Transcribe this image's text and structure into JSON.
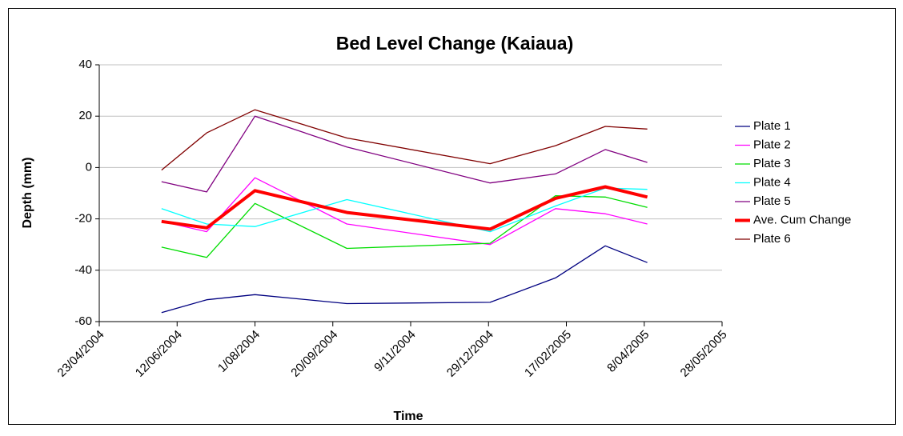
{
  "chart_data": {
    "type": "line",
    "title": "Bed Level Change (Kaiaua)",
    "xlabel": "Time",
    "ylabel": "Depth (mm)",
    "x": [
      "2004-06-02",
      "2004-07-01",
      "2004-08-01",
      "2004-09-29",
      "2004-12-30",
      "2005-02-10",
      "2005-03-14",
      "2005-04-10"
    ],
    "xlim": [
      "2004-04-23",
      "2005-05-28"
    ],
    "xticks": [
      {
        "value": "2004-04-23",
        "label": "23/04/2004"
      },
      {
        "value": "2004-06-12",
        "label": "12/06/2004"
      },
      {
        "value": "2004-08-01",
        "label": "1/08/2004"
      },
      {
        "value": "2004-09-20",
        "label": "20/09/2004"
      },
      {
        "value": "2004-11-09",
        "label": "9/11/2004"
      },
      {
        "value": "2004-12-29",
        "label": "29/12/2004"
      },
      {
        "value": "2005-02-17",
        "label": "17/02/2005"
      },
      {
        "value": "2005-04-08",
        "label": "8/04/2005"
      },
      {
        "value": "2005-05-28",
        "label": "28/05/2005"
      }
    ],
    "ylim": [
      -60,
      40
    ],
    "yticks": [
      -60,
      -40,
      -20,
      0,
      20,
      40
    ],
    "grid": true,
    "legend": "right",
    "series": [
      {
        "name": "Plate 1",
        "color": "#000080",
        "values": [
          -56.5,
          -51.5,
          -49.5,
          -53,
          -52.5,
          -43,
          -30.5,
          -37
        ]
      },
      {
        "name": "Plate 2",
        "color": "#ff00ff",
        "values": [
          -21,
          -25,
          -4,
          -22,
          -30,
          -16,
          -18,
          -22
        ]
      },
      {
        "name": "Plate 3",
        "color": "#00dd00",
        "values": [
          -31,
          -35,
          -14,
          -31.5,
          -29.5,
          -11,
          -11.5,
          -15.5
        ]
      },
      {
        "name": "Plate 4",
        "color": "#00ffff",
        "values": [
          -16,
          -22,
          -23,
          -12.5,
          -25,
          -15,
          -8,
          -8.5
        ]
      },
      {
        "name": "Plate 5",
        "color": "#800080",
        "values": [
          -5.5,
          -9.5,
          20,
          8,
          -6,
          -2.5,
          7,
          2
        ]
      },
      {
        "name": "Ave. Cum Change",
        "color": "#ff0000",
        "line_width": 4,
        "values": [
          -21,
          -23.5,
          -9,
          -17.5,
          -24,
          -12,
          -7.5,
          -11.5
        ]
      },
      {
        "name": "Plate 6",
        "color": "#800000",
        "values": [
          -1,
          13.5,
          22.5,
          11.5,
          1.5,
          8.5,
          16,
          15
        ]
      }
    ]
  }
}
